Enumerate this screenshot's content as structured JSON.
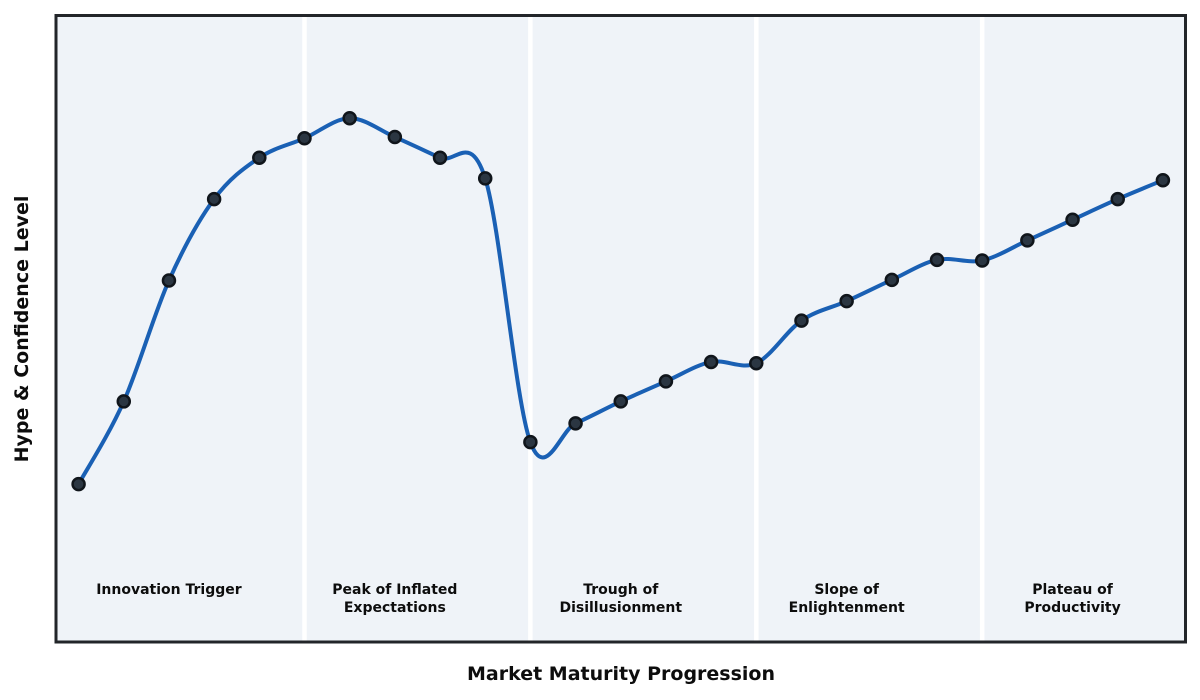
{
  "chart_data": {
    "type": "line",
    "title": "",
    "xlabel": "Market Maturity Progression",
    "ylabel": "Hype & Confidence Level",
    "x": [
      2,
      6,
      10,
      14,
      18,
      22,
      26,
      30,
      34,
      38,
      42,
      46,
      50,
      54,
      58,
      62,
      66,
      70,
      74,
      78,
      82,
      86,
      90,
      94,
      98
    ],
    "series": [
      {
        "name": "Hype & Confidence Level",
        "values": [
          25.2,
          38.4,
          57.7,
          70.7,
          77.3,
          80.4,
          83.6,
          80.6,
          77.3,
          74.0,
          31.9,
          34.9,
          38.4,
          41.6,
          44.7,
          44.5,
          51.3,
          54.4,
          57.8,
          61.0,
          60.9,
          64.1,
          67.4,
          70.7,
          73.7
        ]
      }
    ],
    "xlim": [
      0,
      100
    ],
    "ylim": [
      0,
      100
    ],
    "grid": false,
    "legend": "none",
    "curve_style": "smooth-spline",
    "marker_style": "filled-circle",
    "phases": [
      {
        "label": "Innovation Trigger",
        "center_x": 10
      },
      {
        "label": "Peak of Inflated\nExpectations",
        "center_x": 30
      },
      {
        "label": "Trough of\nDisillusionment",
        "center_x": 50
      },
      {
        "label": "Slope of\nEnlightenment",
        "center_x": 70
      },
      {
        "label": "Plateau of\nProductivity",
        "center_x": 90
      }
    ],
    "phase_boundaries_x": [
      22,
      42,
      62,
      82
    ],
    "colors": {
      "line": "#1a60b4",
      "marker_fill": "#2b3642",
      "marker_edge": "#10151b",
      "plot_bg": "#eff3f8",
      "separator": "#ffffff",
      "frame": "#222529",
      "text": "#0d0d0d",
      "page_bg": "#ffffff"
    }
  }
}
